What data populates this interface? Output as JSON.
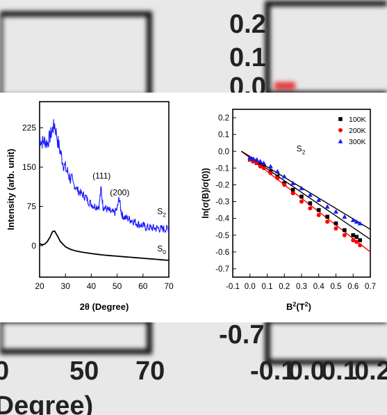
{
  "background": {
    "blurred_texts": [
      "0.2",
      "0.1",
      "0.0",
      "-0.7",
      "0",
      "50",
      "70",
      "(Degree)",
      "-0.1",
      "0.0",
      "0.1",
      "0.2"
    ]
  },
  "colors": {
    "xrd_s2": "#1a1aff",
    "xrd_s0": "#000000",
    "mr_100K": "#000000",
    "mr_200K": "#ff0000",
    "mr_300K": "#1a1aff",
    "fit_100K": "#000000",
    "fit_200K": "#ff0000",
    "fit_300K": "#000000"
  },
  "chart_data": [
    {
      "type": "line",
      "title": "",
      "xlabel": "2θ (Degree)",
      "ylabel": "Intensity (arb. unit)",
      "xlim": [
        20,
        70
      ],
      "ylim": [
        -60,
        275
      ],
      "xticks": [
        20,
        30,
        40,
        50,
        60,
        70
      ],
      "yticks": [
        0,
        75,
        150,
        225
      ],
      "grid": false,
      "series": [
        {
          "name": "S2",
          "noisy": true,
          "x": [
            20,
            21,
            22,
            23,
            24,
            25,
            25.8,
            27,
            28,
            29,
            30,
            31,
            32,
            33,
            34,
            35,
            36,
            37,
            38,
            39,
            40,
            41,
            42,
            43,
            43.8,
            44.5,
            45,
            46,
            47,
            48,
            49,
            50,
            50.8,
            51.5,
            52,
            53,
            54,
            55,
            56,
            57,
            58,
            59,
            60,
            61,
            62,
            63,
            64,
            65,
            66,
            67,
            68,
            69,
            70
          ],
          "y": [
            205,
            198,
            200,
            196,
            208,
            222,
            232,
            200,
            180,
            160,
            148,
            138,
            128,
            118,
            112,
            104,
            100,
            96,
            92,
            84,
            80,
            76,
            75,
            76,
            110,
            76,
            72,
            70,
            66,
            63,
            62,
            70,
            92,
            66,
            58,
            54,
            52,
            50,
            48,
            45,
            42,
            40,
            38,
            36,
            35,
            34,
            34,
            33,
            33,
            32,
            32,
            32,
            32
          ]
        },
        {
          "name": "S0",
          "noisy": false,
          "x": [
            20,
            21,
            22,
            23,
            24,
            25,
            25.8,
            27,
            28,
            30,
            32,
            34,
            36,
            40,
            45,
            50,
            55,
            60,
            65,
            70
          ],
          "y": [
            4,
            2,
            3,
            8,
            16,
            27,
            28,
            18,
            8,
            -2,
            -7,
            -10,
            -12,
            -15,
            -18,
            -20,
            -22,
            -24,
            -26,
            -28
          ]
        }
      ],
      "annotations": [
        {
          "text": "(111)",
          "x": 44,
          "y": 128
        },
        {
          "text": "(200)",
          "x": 51,
          "y": 96
        },
        {
          "text": "S",
          "sub": "2",
          "x": 65.5,
          "y": 60
        },
        {
          "text": "S",
          "sub": "0",
          "x": 65.5,
          "y": -11
        }
      ]
    },
    {
      "type": "scatter",
      "title": "",
      "xlabel": "B",
      "xlabel_sup1": "2",
      "xlabel_paren": "(T",
      "xlabel_sup2": "2",
      "xlabel_end": ")",
      "ylabel": "ln(σ(B)/σ(0))",
      "xlim": [
        -0.1,
        0.7
      ],
      "ylim": [
        -0.75,
        0.25
      ],
      "xticks": [
        -0.1,
        0.0,
        0.1,
        0.2,
        0.3,
        0.4,
        0.5,
        0.6,
        0.7
      ],
      "yticks": [
        0.2,
        0.1,
        0.0,
        -0.1,
        -0.2,
        -0.3,
        -0.4,
        -0.5,
        -0.6,
        -0.7
      ],
      "grid": false,
      "legend_position": "top-right",
      "annotation": {
        "text": "S",
        "sub": "2",
        "x": 0.27,
        "y": 0.0
      },
      "series": [
        {
          "name": "100K",
          "marker": "square",
          "x": [
            0.0,
            0.02,
            0.04,
            0.06,
            0.08,
            0.12,
            0.16,
            0.2,
            0.25,
            0.3,
            0.35,
            0.4,
            0.45,
            0.5,
            0.55,
            0.6,
            0.62,
            0.64
          ],
          "y": [
            -0.05,
            -0.06,
            -0.07,
            -0.08,
            -0.09,
            -0.12,
            -0.15,
            -0.19,
            -0.23,
            -0.27,
            -0.31,
            -0.35,
            -0.39,
            -0.43,
            -0.47,
            -0.5,
            -0.51,
            -0.53
          ]
        },
        {
          "name": "200K",
          "marker": "circle",
          "x": [
            0.0,
            0.02,
            0.04,
            0.06,
            0.08,
            0.12,
            0.16,
            0.2,
            0.25,
            0.3,
            0.35,
            0.4,
            0.45,
            0.5,
            0.55,
            0.6,
            0.62,
            0.64
          ],
          "y": [
            -0.05,
            -0.06,
            -0.07,
            -0.09,
            -0.1,
            -0.13,
            -0.16,
            -0.2,
            -0.25,
            -0.3,
            -0.34,
            -0.38,
            -0.42,
            -0.46,
            -0.5,
            -0.53,
            -0.54,
            -0.56
          ]
        },
        {
          "name": "300K",
          "marker": "triangle",
          "x": [
            0.0,
            0.02,
            0.04,
            0.06,
            0.08,
            0.12,
            0.16,
            0.2,
            0.25,
            0.3,
            0.35,
            0.4,
            0.45,
            0.5,
            0.55,
            0.6,
            0.62,
            0.64
          ],
          "y": [
            -0.04,
            -0.045,
            -0.05,
            -0.06,
            -0.07,
            -0.09,
            -0.12,
            -0.15,
            -0.19,
            -0.22,
            -0.26,
            -0.29,
            -0.33,
            -0.36,
            -0.39,
            -0.41,
            -0.42,
            -0.43
          ]
        }
      ],
      "fits": [
        {
          "name": "100K",
          "x": [
            -0.05,
            0.7
          ],
          "y": [
            0.0,
            -0.525
          ]
        },
        {
          "name": "200K",
          "x": [
            -0.05,
            0.7
          ],
          "y": [
            0.0,
            -0.6
          ]
        },
        {
          "name": "300K",
          "x": [
            -0.05,
            0.7
          ],
          "y": [
            0.0,
            -0.465
          ]
        }
      ]
    }
  ]
}
